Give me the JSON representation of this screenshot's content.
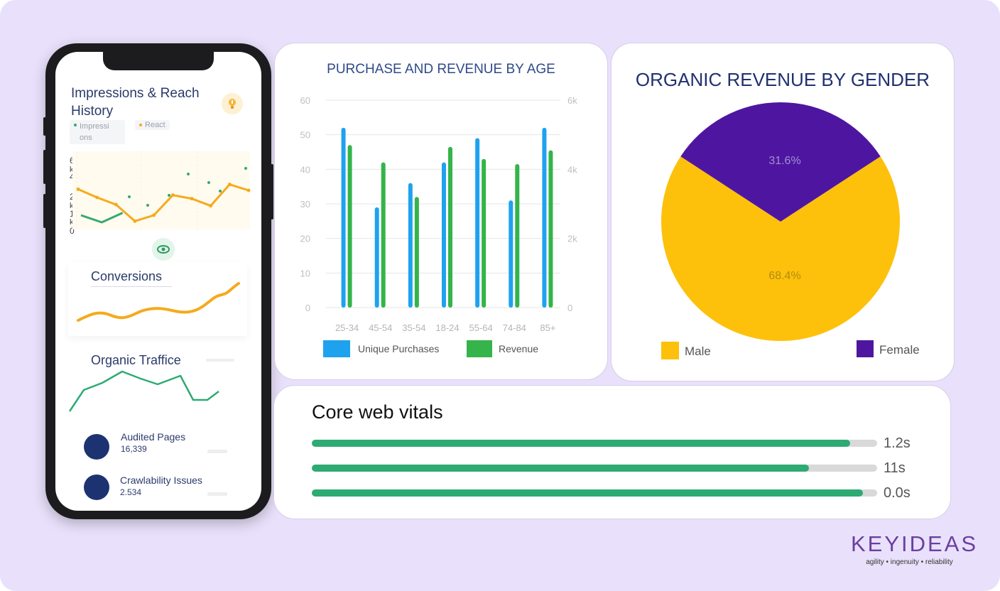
{
  "phone": {
    "impressions_title": "Impressions & Reach History",
    "legend": {
      "impressions": "Impressi\nons",
      "reach": "React"
    },
    "axis": {
      "t6": "6",
      "t4": "4k",
      "k6": "k",
      "t2": "2",
      "k2": "k",
      "t1": "1",
      "k1": "k",
      "t0": "0"
    },
    "conversions_title": "Conversions",
    "organic_title": "Organic Traffice",
    "audited": {
      "label": "Audited Pages",
      "value": "16,339"
    },
    "crawl": {
      "label": "Crawlability Issues",
      "value": "2.534"
    }
  },
  "bar_card": {
    "title": "PURCHASE AND REVENUE BY AGE",
    "legend_purchases": "Unique Purchases",
    "legend_revenue": "Revenue"
  },
  "pie_card": {
    "title": "ORGANIC REVENUE BY GENDER",
    "legend_male": "Male",
    "legend_female": "Female"
  },
  "cwv": {
    "title": "Core web vitals",
    "items": [
      {
        "label": "1.2s",
        "fraction": 0.952
      },
      {
        "label": "11s",
        "fraction": 0.88
      },
      {
        "label": "0.0s",
        "fraction": 0.975
      }
    ]
  },
  "logo": {
    "name": "KEYIDEAS",
    "tagline": "agility  •  ingenuity  •  reliability",
    "color": "#6b3fa0"
  },
  "chart_data": [
    {
      "type": "bar",
      "title": "PURCHASE AND REVENUE BY AGE",
      "categories": [
        "25-34",
        "45-54",
        "35-54",
        "18-24",
        "55-64",
        "74-84",
        "85+"
      ],
      "series": [
        {
          "name": "Unique Purchases",
          "axis": "left",
          "color": "#1fa2ee",
          "values": [
            52,
            29,
            36,
            42,
            49,
            31,
            52
          ]
        },
        {
          "name": "Revenue",
          "axis": "right",
          "color": "#34b44a",
          "values": [
            4700,
            4200,
            3200,
            4650,
            4300,
            4150,
            4550
          ]
        }
      ],
      "ylim_left": [
        0,
        60
      ],
      "yticks_left": [
        "0",
        "10",
        "20",
        "30",
        "40",
        "50",
        "60"
      ],
      "ylim_right": [
        0,
        6000
      ],
      "yticks_right": [
        "0",
        "2k",
        "4k",
        "6k"
      ],
      "legend": "bottom"
    },
    {
      "type": "pie",
      "title": "ORGANIC REVENUE BY GENDER",
      "slices": [
        {
          "label": "Male",
          "value": 68.4,
          "display": "68.4%",
          "color": "#fdc10b"
        },
        {
          "label": "Female",
          "value": 31.6,
          "display": "31.6%",
          "color": "#4e16a0"
        }
      ],
      "legend": "bottom"
    },
    {
      "type": "line",
      "title": "Impressions & Reach History",
      "series": [
        {
          "name": "Impressi ons",
          "color": "#36a874",
          "values": [
            1.2,
            0.6,
            1.4
          ]
        },
        {
          "name": "React",
          "color": "#f5aa1c",
          "values": [
            3.4,
            2.7,
            2.1,
            0.7,
            1.2,
            2.9,
            2.6,
            2.0,
            3.8,
            3.3
          ]
        }
      ],
      "ylim": [
        0,
        6
      ]
    }
  ]
}
